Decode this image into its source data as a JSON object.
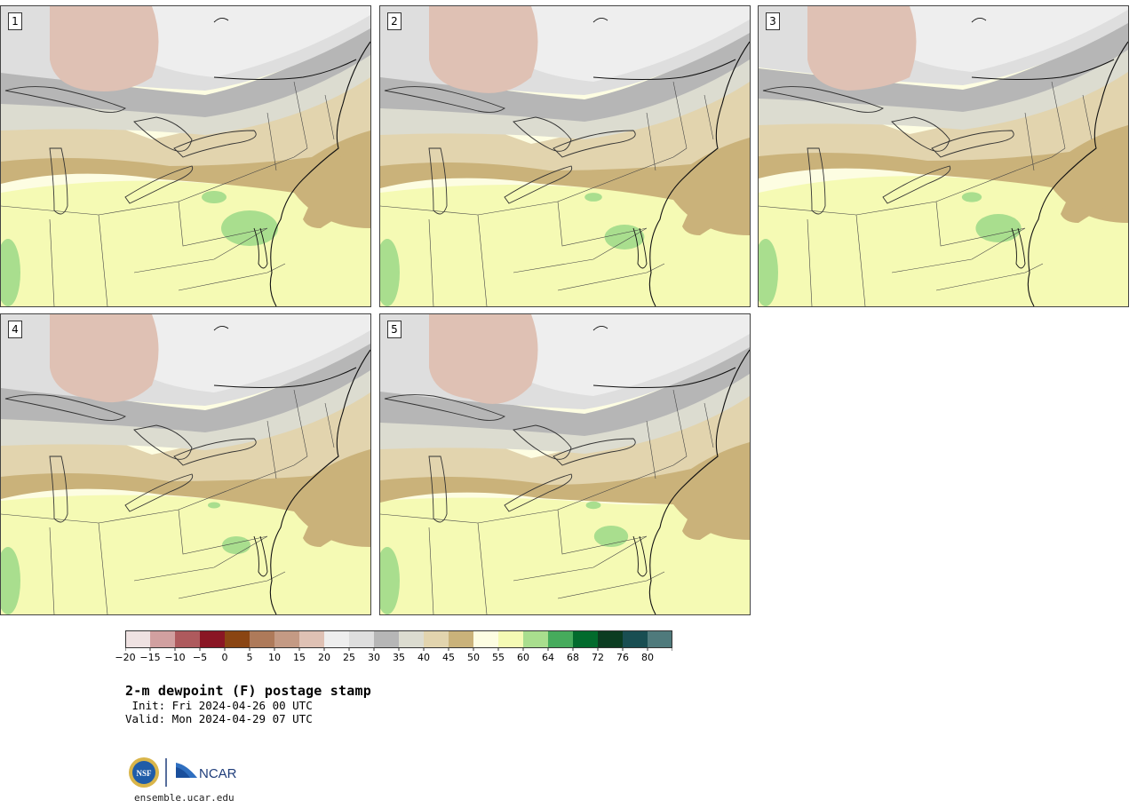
{
  "panels": [
    {
      "label": "1"
    },
    {
      "label": "2"
    },
    {
      "label": "3"
    },
    {
      "label": "4"
    },
    {
      "label": "5"
    }
  ],
  "colorbar": {
    "colors": [
      "#efe2e2",
      "#d1a0a0",
      "#ae5a5d",
      "#8a1624",
      "#8a4513",
      "#ae7a5a",
      "#c49a84",
      "#dfc1b4",
      "#eeeeee",
      "#dedede",
      "#b6b6b6",
      "#dcdcd0",
      "#e2d4ae",
      "#cab27a",
      "#fdfde2",
      "#f5fab4",
      "#a9de8e",
      "#46ab5c",
      "#026b2d",
      "#0b3c21",
      "#194e52",
      "#4f7a7c"
    ],
    "ticks": [
      "−20",
      "−15",
      "−10",
      "−5",
      "0",
      "5",
      "10",
      "15",
      "20",
      "25",
      "30",
      "35",
      "40",
      "45",
      "50",
      "55",
      "60",
      "64",
      "68",
      "72",
      "76",
      "80"
    ]
  },
  "title": "2-m dewpoint (F) postage stamp",
  "init": " Init: Fri 2024-04-26 00 UTC",
  "valid": "Valid: Mon 2024-04-29 07 UTC",
  "logo": {
    "nsf": "NSF",
    "ncar": "NCAR"
  },
  "site": "ensemble.ucar.edu"
}
